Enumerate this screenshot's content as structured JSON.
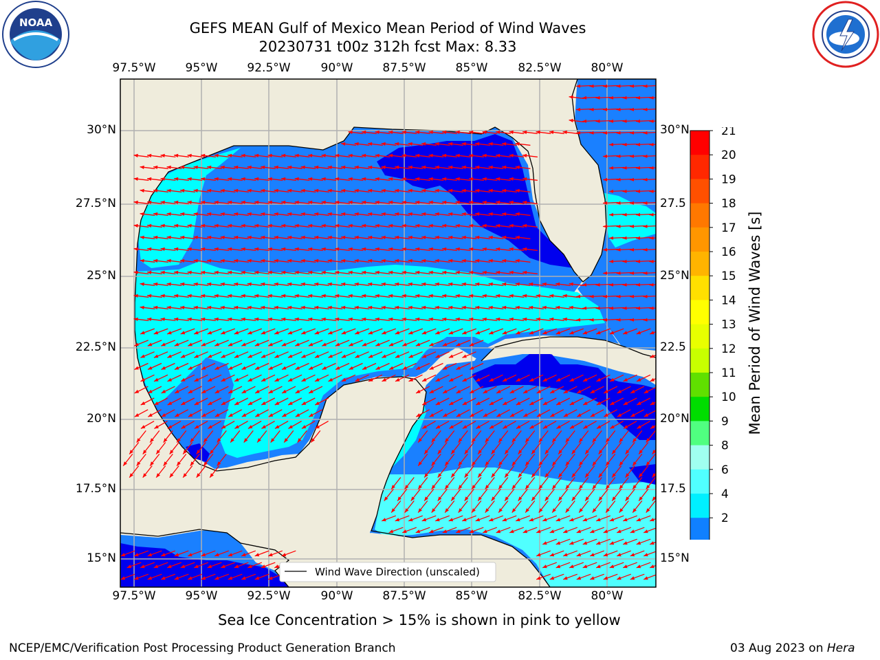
{
  "header": {
    "title_line1": "GEFS MEAN Gulf of Mexico Mean Period of Wind Waves",
    "title_line2": "20230731 t00z 312h fcst   Max: 8.33"
  },
  "logos": {
    "noaa": {
      "text": "NOAA",
      "ring_text": "NATIONAL OCEANIC AND ATMOSPHERIC ADMINISTRATION · U.S. DEPARTMENT OF COMMERCE"
    },
    "nws": {
      "ring_text": "NATIONAL WEATHER SERVICE"
    }
  },
  "map": {
    "lon_labels_top": [
      "97.5°W",
      "95°W",
      "92.5°W",
      "90°W",
      "87.5°W",
      "85°W",
      "82.5°W",
      "80°W"
    ],
    "lon_labels_bottom": [
      "97.5°W",
      "95°W",
      "92.5°W",
      "90°W",
      "87.5°W",
      "85°W",
      "82.5°W",
      "80°W"
    ],
    "lat_labels_left": [
      "30°N",
      "27.5°N",
      "25°N",
      "22.5°N",
      "20°N",
      "17.5°N",
      "15°N"
    ],
    "lat_labels_right": [
      "30°N",
      "27.5",
      "25°N",
      "22.5",
      "20°N",
      "17.5",
      "15°N"
    ],
    "legend_text": "Wind Wave Direction (unscaled)"
  },
  "colorbar": {
    "label": "Mean Period of Wind Waves [s]",
    "ticks": [
      "21",
      "20",
      "19",
      "18",
      "17",
      "16",
      "15",
      "14",
      "13",
      "12",
      "11",
      "10",
      "9",
      "8",
      "6",
      "4",
      "2"
    ],
    "colors": [
      "#ff0000",
      "#ff2800",
      "#ff5000",
      "#ff7800",
      "#ff9600",
      "#ffb400",
      "#ffe000",
      "#ffff00",
      "#e8ff00",
      "#c8ff00",
      "#60e000",
      "#00dd00",
      "#50ff80",
      "#a0fff0",
      "#50ffff",
      "#00f0ff",
      "#1080ff"
    ],
    "under_color": "#0000f0"
  },
  "colors": {
    "land": "#efecdc",
    "period_2_4": "#1a80ff",
    "period_4_6": "#00ffff",
    "period_6_8": "#50ffff",
    "period_below_2": "#0000ee",
    "arrow": "#ff0000",
    "grid": "#b0b0b0"
  },
  "note": "Sea Ice Concentration > 15% is shown in pink to yellow",
  "footer": {
    "left": "NCEP/EMC/Verification Post Processing Product Generation Branch",
    "right_date": "03 Aug 2023 on",
    "right_host": "Hera"
  }
}
